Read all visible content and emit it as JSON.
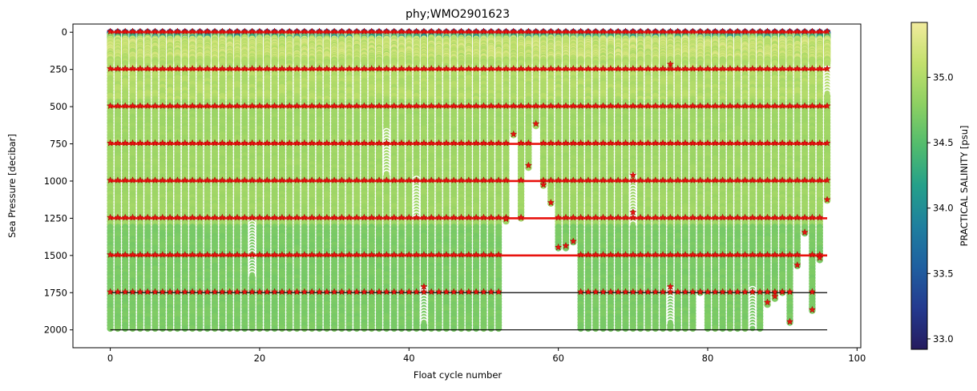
{
  "chart_data": {
    "type": "scatter",
    "title": "phy;WMO2901623",
    "xlabel": "Float cycle number",
    "ylabel": "Sea Pressure [decibar]",
    "xlim": [
      -5,
      100.5
    ],
    "ylim": [
      2120,
      -55
    ],
    "y_inverted": true,
    "x_ticks": [
      0,
      20,
      40,
      60,
      80,
      100
    ],
    "x_tick_labels": [
      "0",
      "20",
      "40",
      "60",
      "80",
      "100"
    ],
    "y_ticks": [
      0,
      250,
      500,
      750,
      1000,
      1250,
      1500,
      1750,
      2000
    ],
    "y_tick_labels": [
      "0",
      "250",
      "500",
      "750",
      "1000",
      "1250",
      "1500",
      "1750",
      "2000"
    ],
    "grid": false,
    "colorbar": {
      "label": "PRACTICAL SALINITY [psu]",
      "colormap": "viridis-like (dark blue to pale yellow)",
      "range": [
        32.92,
        35.42
      ],
      "ticks": [
        33.0,
        33.5,
        34.0,
        34.5,
        35.0
      ],
      "tick_labels": [
        "33.0",
        "33.5",
        "34.0",
        "34.5",
        "35.0"
      ],
      "stops": [
        "#251b5e",
        "#243a8f",
        "#1f5fa0",
        "#1f7f9f",
        "#24a08a",
        "#52bc6d",
        "#8dd062",
        "#c3e06d",
        "#f1eb9d"
      ]
    },
    "profiles": {
      "cycles_range": [
        0,
        96
      ],
      "surface_salinity": 33.3,
      "near_surface_salinity_max": 35.3,
      "mid_depth_salinity": 34.9,
      "deep_salinity": 34.7,
      "typical_max_pressure": 2000,
      "short_profiles": [
        {
          "cycle": 53,
          "max_pressure": 1270
        },
        {
          "cycle": 54,
          "max_pressure": 700
        },
        {
          "cycle": 55,
          "max_pressure": 1250
        },
        {
          "cycle": 56,
          "max_pressure": 910
        },
        {
          "cycle": 57,
          "max_pressure": 630
        },
        {
          "cycle": 58,
          "max_pressure": 1040
        },
        {
          "cycle": 59,
          "max_pressure": 1160
        },
        {
          "cycle": 60,
          "max_pressure": 1460
        },
        {
          "cycle": 61,
          "max_pressure": 1450
        },
        {
          "cycle": 62,
          "max_pressure": 1420
        },
        {
          "cycle": 79,
          "max_pressure": 1760
        },
        {
          "cycle": 88,
          "max_pressure": 1830
        },
        {
          "cycle": 89,
          "max_pressure": 1790
        },
        {
          "cycle": 90,
          "max_pressure": 1760
        },
        {
          "cycle": 91,
          "max_pressure": 1960
        },
        {
          "cycle": 92,
          "max_pressure": 1580
        },
        {
          "cycle": 93,
          "max_pressure": 1360
        },
        {
          "cycle": 94,
          "max_pressure": 1880
        },
        {
          "cycle": 95,
          "max_pressure": 1530
        },
        {
          "cycle": 96,
          "max_pressure": 1140
        }
      ],
      "flagged_points": [
        {
          "cycle": 19,
          "from": 1290,
          "to": 1630
        },
        {
          "cycle": 37,
          "from": 660,
          "to": 960
        },
        {
          "cycle": 41,
          "from": 990,
          "to": 1250
        },
        {
          "cycle": 42,
          "from": 1720,
          "to": 1960
        },
        {
          "cycle": 70,
          "from": 970,
          "to": 1290
        },
        {
          "cycle": 75,
          "from": 1720,
          "to": 1960
        },
        {
          "cycle": 86,
          "from": 1720,
          "to": 1990
        },
        {
          "cycle": 96,
          "from": 250,
          "to": 420
        }
      ]
    },
    "reference_lines": {
      "red_pressures": [
        0,
        250,
        500,
        750,
        1000,
        1250,
        1500
      ],
      "black_pressures": [
        1750,
        2000
      ],
      "x_range": [
        0,
        96
      ]
    },
    "star_markers": {
      "levels": [
        0,
        250,
        500,
        750,
        1000,
        1250,
        1500,
        1750
      ],
      "offsets": [
        {
          "cycle": 75,
          "pressure": 215
        },
        {
          "cycle": 70,
          "pressure": 960
        },
        {
          "cycle": 70,
          "pressure": 1210
        },
        {
          "cycle": 42,
          "pressure": 1710
        },
        {
          "cycle": 75,
          "pressure": 1710
        }
      ]
    }
  }
}
